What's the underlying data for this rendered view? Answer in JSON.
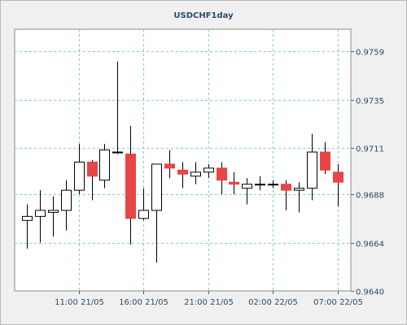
{
  "chart_data": {
    "type": "candlestick",
    "title": "USDCHF1day",
    "xlabel": "",
    "ylabel": "",
    "ylim": [
      0.964,
      0.977
    ],
    "yticks": [
      "0.9759",
      "0.9735",
      "0.9711",
      "0.9688",
      "0.9664",
      "0.9640"
    ],
    "xticks": [
      {
        "index": 4,
        "label": "11:00 21/05"
      },
      {
        "index": 9,
        "label": "16:00 21/05"
      },
      {
        "index": 14,
        "label": "21:00 21/05"
      },
      {
        "index": 19,
        "label": "02:00 22/05"
      },
      {
        "index": 24,
        "label": "07:00 22/05"
      }
    ],
    "grid": true,
    "colors": {
      "up": "#ffffff",
      "down": "#e84545",
      "outline": "#000000",
      "grid": "#80cccc"
    },
    "candles": [
      {
        "open": 0.9675,
        "high": 0.9683,
        "low": 0.9661,
        "close": 0.9677
      },
      {
        "open": 0.9677,
        "high": 0.969,
        "low": 0.9664,
        "close": 0.968
      },
      {
        "open": 0.9679,
        "high": 0.9687,
        "low": 0.9667,
        "close": 0.968
      },
      {
        "open": 0.968,
        "high": 0.9695,
        "low": 0.967,
        "close": 0.969
      },
      {
        "open": 0.969,
        "high": 0.9713,
        "low": 0.9688,
        "close": 0.9704
      },
      {
        "open": 0.9704,
        "high": 0.9705,
        "low": 0.9685,
        "close": 0.9697
      },
      {
        "open": 0.9695,
        "high": 0.9713,
        "low": 0.9691,
        "close": 0.971
      },
      {
        "open": 0.9709,
        "high": 0.9754,
        "low": 0.9708,
        "close": 0.9709
      },
      {
        "open": 0.9708,
        "high": 0.9722,
        "low": 0.9663,
        "close": 0.9676
      },
      {
        "open": 0.9676,
        "high": 0.9691,
        "low": 0.9675,
        "close": 0.968
      },
      {
        "open": 0.968,
        "high": 0.9703,
        "low": 0.9654,
        "close": 0.9703
      },
      {
        "open": 0.9703,
        "high": 0.971,
        "low": 0.9696,
        "close": 0.9701
      },
      {
        "open": 0.97,
        "high": 0.9704,
        "low": 0.9691,
        "close": 0.9698
      },
      {
        "open": 0.9697,
        "high": 0.9704,
        "low": 0.9693,
        "close": 0.9699
      },
      {
        "open": 0.9699,
        "high": 0.9703,
        "low": 0.9696,
        "close": 0.9701
      },
      {
        "open": 0.9701,
        "high": 0.9704,
        "low": 0.9688,
        "close": 0.9695
      },
      {
        "open": 0.9694,
        "high": 0.9699,
        "low": 0.9688,
        "close": 0.9693
      },
      {
        "open": 0.9691,
        "high": 0.9696,
        "low": 0.9683,
        "close": 0.9693
      },
      {
        "open": 0.9693,
        "high": 0.9697,
        "low": 0.969,
        "close": 0.9693
      },
      {
        "open": 0.9693,
        "high": 0.9695,
        "low": 0.9691,
        "close": 0.9693
      },
      {
        "open": 0.9693,
        "high": 0.9695,
        "low": 0.968,
        "close": 0.969
      },
      {
        "open": 0.969,
        "high": 0.9694,
        "low": 0.9679,
        "close": 0.9691
      },
      {
        "open": 0.9691,
        "high": 0.9718,
        "low": 0.9685,
        "close": 0.9709
      },
      {
        "open": 0.9709,
        "high": 0.9714,
        "low": 0.9698,
        "close": 0.97
      },
      {
        "open": 0.9699,
        "high": 0.9703,
        "low": 0.9682,
        "close": 0.9694
      }
    ]
  }
}
